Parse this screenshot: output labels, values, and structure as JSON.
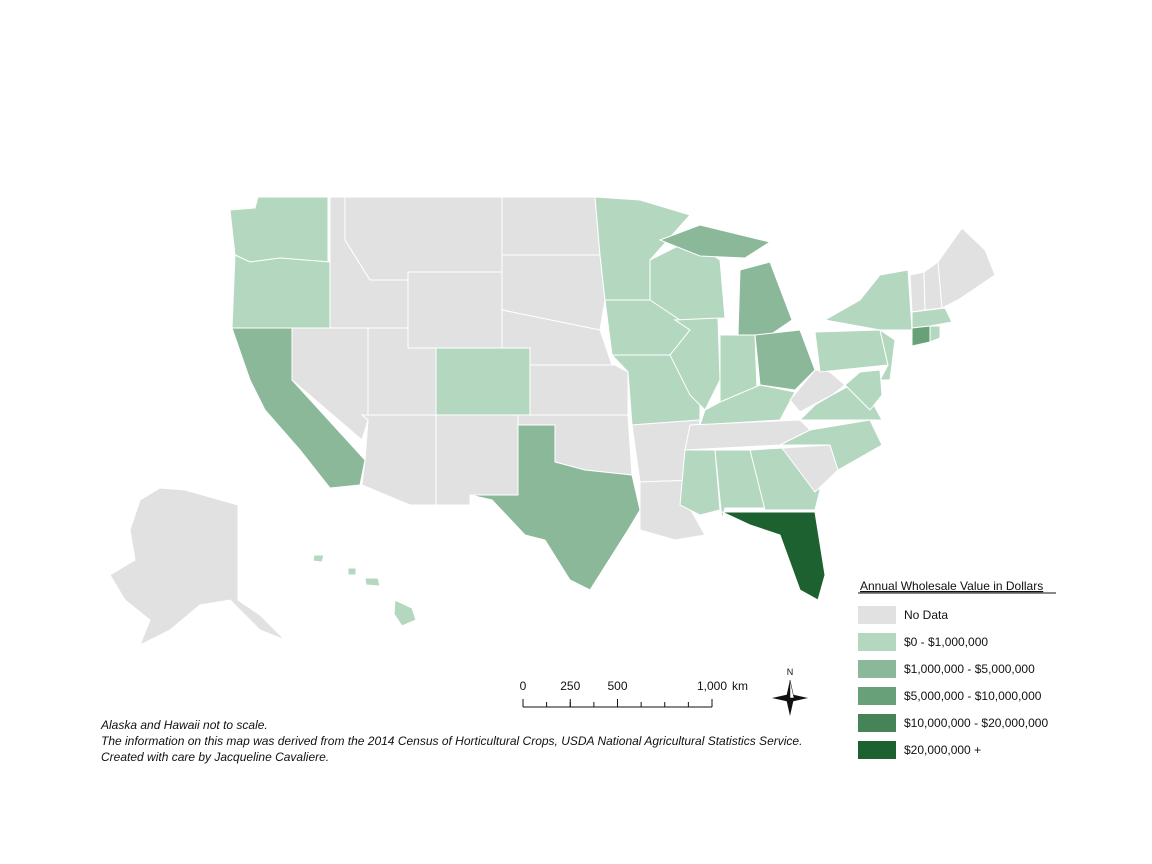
{
  "legend": {
    "title": "Annual Wholesale Value in Dollars",
    "items": [
      {
        "label": "No Data",
        "color": "#e1e1e1"
      },
      {
        "label": "$0 - $1,000,000",
        "color": "#b4d7bf"
      },
      {
        "label": "$1,000,000 - $5,000,000",
        "color": "#8ab898"
      },
      {
        "label": "$5,000,000 - $10,000,000",
        "color": "#68a07a"
      },
      {
        "label": "$10,000,000 - $20,000,000",
        "color": "#468458"
      },
      {
        "label": "$20,000,000 +",
        "color": "#1e6131"
      }
    ]
  },
  "scale_bar": {
    "ticks": [
      0,
      250,
      500,
      {
        "value": 1000,
        "label": "1,000"
      }
    ],
    "unit": "km"
  },
  "north_arrow": {
    "label": "N"
  },
  "notes": [
    "Alaska and Hawaii not to scale.",
    "The information on this map was derived from the 2014 Census of Horticultural Crops, USDA National Agricultural Statistics Service.",
    "Created with care by Jacqueline Cavaliere."
  ]
}
